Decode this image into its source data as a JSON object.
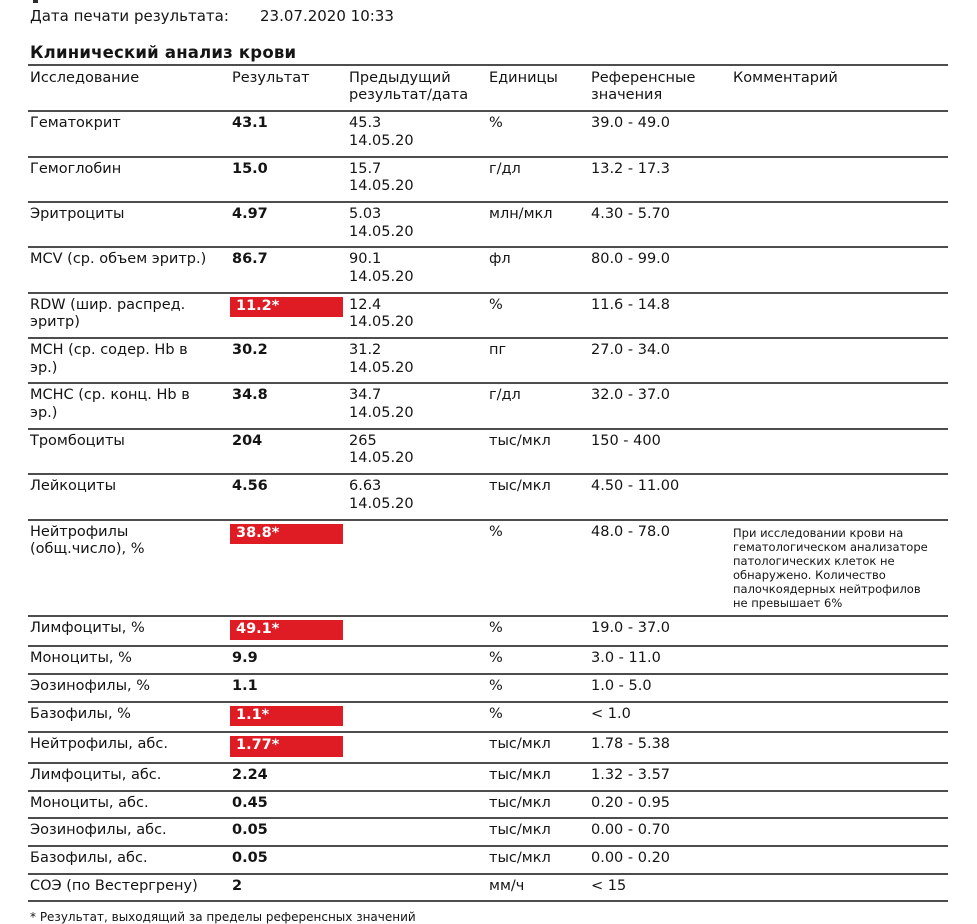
{
  "page": {
    "print_date_label": "Дата печати результата:",
    "print_date_value": "23.07.2020 10:33",
    "section_title": "Клинический анализ крови",
    "footnote": "* Результат, выходящий за пределы референсных значений"
  },
  "colors": {
    "abnormal_bg": "#df1b24",
    "abnormal_text": "#ffffff",
    "rule_color": "#4d4d4d"
  },
  "table": {
    "columns": [
      "Исследование",
      "Результат",
      "Предыдущий результат/дата",
      "Единицы",
      "Референсные значения",
      "Комментарий"
    ],
    "rows": [
      {
        "name": "Гематокрит",
        "result": "43.1",
        "flagged": false,
        "previous": "45.3",
        "previous_date": "14.05.20",
        "units": "%",
        "reference": "39.0 - 49.0",
        "comment": ""
      },
      {
        "name": "Гемоглобин",
        "result": "15.0",
        "flagged": false,
        "previous": "15.7",
        "previous_date": "14.05.20",
        "units": "г/дл",
        "reference": "13.2 - 17.3",
        "comment": ""
      },
      {
        "name": "Эритроциты",
        "result": "4.97",
        "flagged": false,
        "previous": "5.03",
        "previous_date": "14.05.20",
        "units": "млн/мкл",
        "reference": "4.30 - 5.70",
        "comment": ""
      },
      {
        "name": "MCV (ср. объем эритр.)",
        "result": "86.7",
        "flagged": false,
        "previous": "90.1",
        "previous_date": "14.05.20",
        "units": "фл",
        "reference": "80.0 - 99.0",
        "comment": ""
      },
      {
        "name": "RDW (шир. распред. эритр)",
        "result": "11.2*",
        "flagged": true,
        "previous": "12.4",
        "previous_date": "14.05.20",
        "units": "%",
        "reference": "11.6 - 14.8",
        "comment": ""
      },
      {
        "name": "MCH (ср. содер. Hb в эр.)",
        "result": "30.2",
        "flagged": false,
        "previous": "31.2",
        "previous_date": "14.05.20",
        "units": "пг",
        "reference": "27.0 - 34.0",
        "comment": ""
      },
      {
        "name": "MCHC (ср. конц. Hb в эр.)",
        "result": "34.8",
        "flagged": false,
        "previous": "34.7",
        "previous_date": "14.05.20",
        "units": "г/дл",
        "reference": "32.0 - 37.0",
        "comment": ""
      },
      {
        "name": "Тромбоциты",
        "result": "204",
        "flagged": false,
        "previous": "265",
        "previous_date": "14.05.20",
        "units": "тыс/мкл",
        "reference": "150 - 400",
        "comment": ""
      },
      {
        "name": "Лейкоциты",
        "result": "4.56",
        "flagged": false,
        "previous": "6.63",
        "previous_date": "14.05.20",
        "units": "тыс/мкл",
        "reference": "4.50 - 11.00",
        "comment": ""
      },
      {
        "name": "Нейтрофилы (общ.число), %",
        "result": "38.8*",
        "flagged": true,
        "previous": "",
        "previous_date": "",
        "units": "%",
        "reference": "48.0 - 78.0",
        "comment": "При исследовании крови на гематологическом анализаторе патологических клеток не обнаружено. Количество палочкоядерных нейтрофилов не превышает 6%"
      },
      {
        "name": "Лимфоциты, %",
        "result": "49.1*",
        "flagged": true,
        "previous": "",
        "previous_date": "",
        "units": "%",
        "reference": "19.0 - 37.0",
        "comment": ""
      },
      {
        "name": "Моноциты, %",
        "result": "9.9",
        "flagged": false,
        "previous": "",
        "previous_date": "",
        "units": "%",
        "reference": "3.0 - 11.0",
        "comment": ""
      },
      {
        "name": "Эозинофилы, %",
        "result": "1.1",
        "flagged": false,
        "previous": "",
        "previous_date": "",
        "units": "%",
        "reference": "1.0 - 5.0",
        "comment": ""
      },
      {
        "name": "Базофилы, %",
        "result": "1.1*",
        "flagged": true,
        "previous": "",
        "previous_date": "",
        "units": "%",
        "reference": "< 1.0",
        "comment": ""
      },
      {
        "name": "Нейтрофилы, абс.",
        "result": "1.77*",
        "flagged": true,
        "previous": "",
        "previous_date": "",
        "units": "тыс/мкл",
        "reference": "1.78 - 5.38",
        "comment": ""
      },
      {
        "name": "Лимфоциты, абс.",
        "result": "2.24",
        "flagged": false,
        "previous": "",
        "previous_date": "",
        "units": "тыс/мкл",
        "reference": "1.32 - 3.57",
        "comment": ""
      },
      {
        "name": "Моноциты, абс.",
        "result": "0.45",
        "flagged": false,
        "previous": "",
        "previous_date": "",
        "units": "тыс/мкл",
        "reference": "0.20 - 0.95",
        "comment": ""
      },
      {
        "name": "Эозинофилы, абс.",
        "result": "0.05",
        "flagged": false,
        "previous": "",
        "previous_date": "",
        "units": "тыс/мкл",
        "reference": "0.00 - 0.70",
        "comment": ""
      },
      {
        "name": "Базофилы, абс.",
        "result": "0.05",
        "flagged": false,
        "previous": "",
        "previous_date": "",
        "units": "тыс/мкл",
        "reference": "0.00 - 0.20",
        "comment": ""
      },
      {
        "name": "СОЭ (по Вестергрену)",
        "result": "2",
        "flagged": false,
        "previous": "",
        "previous_date": "",
        "units": "мм/ч",
        "reference": "< 15",
        "comment": ""
      }
    ]
  }
}
